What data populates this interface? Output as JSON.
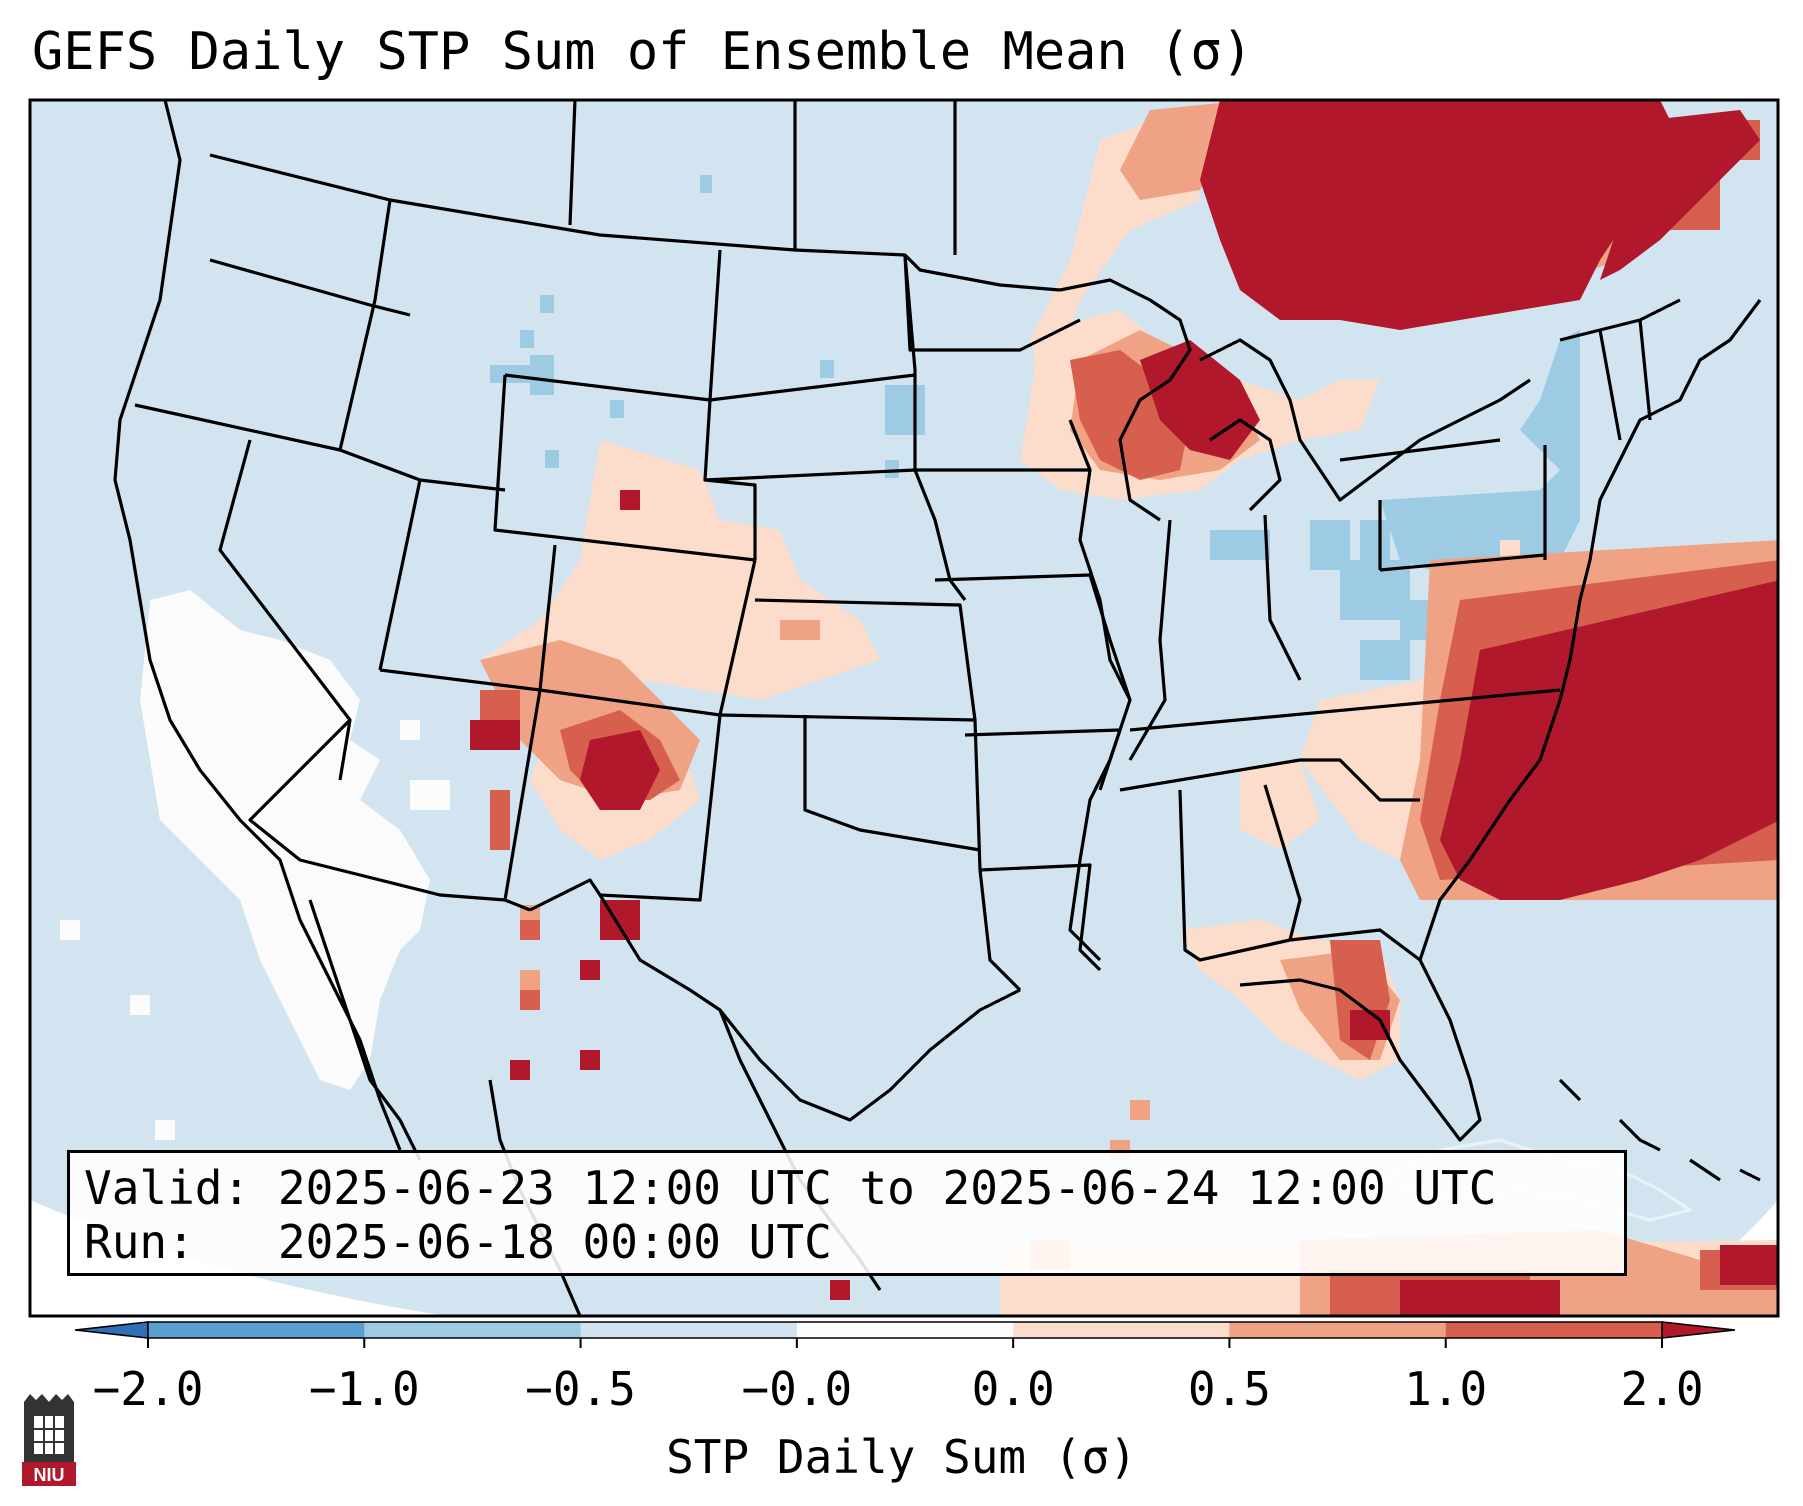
{
  "title": "GEFS Daily STP Sum of Ensemble Mean (σ)",
  "info": {
    "valid_label": "Valid:",
    "valid_text": "2025-06-23 12:00 UTC to 2025-06-24 12:00 UTC",
    "run_label": "Run:",
    "run_text": "2025-06-18 00:00 UTC"
  },
  "colorbar": {
    "label": "STP Daily Sum (σ)",
    "ticks": [
      "−2.0",
      "−1.0",
      "−0.5",
      "−0.0",
      "0.0",
      "0.5",
      "1.0",
      "2.0"
    ],
    "bins": [
      "#2e6fb5",
      "#5a9fd0",
      "#9dcbe4",
      "#d0e3ef",
      "#fbfbfb",
      "#fcdcca",
      "#f0a384",
      "#d6604d",
      "#b2182b"
    ],
    "under_color": "#2e6fb5",
    "over_color": "#b2182b"
  },
  "colors": {
    "background": "#d1e4ef",
    "outside_domain": "#ffffff",
    "neutral_white": "#fbfbfb",
    "light_red": "#fcdcca",
    "mid_red": "#f0a384",
    "red": "#d6604d",
    "dark_red": "#b2182b",
    "light_blue": "#9dcbe4",
    "boundary": "#000000"
  },
  "logo": {
    "text": "NIU",
    "color": "#b2182b"
  }
}
